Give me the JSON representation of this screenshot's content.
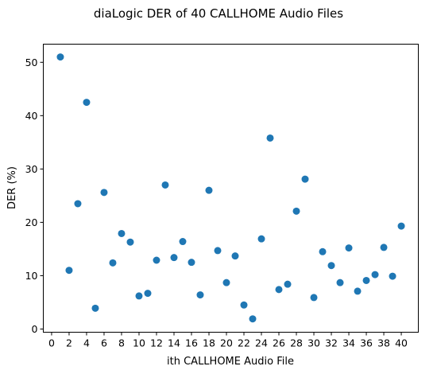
{
  "chart_data": {
    "type": "scatter",
    "title": "diaLogic DER of 40 CALLHOME Audio Files",
    "xlabel": "ith CALLHOME Audio File",
    "ylabel": "DER (%)",
    "xlim": [
      -0.95,
      41.95
    ],
    "ylim": [
      -0.6,
      53.4
    ],
    "xticks": [
      0,
      2,
      4,
      6,
      8,
      10,
      12,
      14,
      16,
      18,
      20,
      22,
      24,
      26,
      28,
      30,
      32,
      34,
      36,
      38,
      40
    ],
    "yticks": [
      0,
      10,
      20,
      30,
      40,
      50
    ],
    "grid": false,
    "marker_color": "#1f77b4",
    "x": [
      1,
      2,
      3,
      4,
      5,
      6,
      7,
      8,
      9,
      10,
      11,
      12,
      13,
      14,
      15,
      16,
      17,
      18,
      19,
      20,
      21,
      22,
      23,
      24,
      25,
      26,
      27,
      28,
      29,
      30,
      31,
      32,
      33,
      34,
      35,
      36,
      37,
      38,
      39,
      40
    ],
    "y": [
      51.0,
      11.0,
      23.5,
      42.5,
      3.9,
      25.6,
      12.4,
      17.9,
      16.3,
      6.2,
      6.7,
      12.9,
      27.0,
      13.4,
      16.4,
      12.5,
      6.4,
      26.0,
      14.7,
      8.7,
      13.7,
      4.5,
      1.9,
      16.9,
      35.8,
      7.4,
      8.4,
      22.1,
      28.1,
      5.9,
      14.5,
      11.9,
      8.7,
      15.2,
      7.1,
      9.1,
      10.2,
      15.3,
      9.9,
      19.3
    ]
  }
}
